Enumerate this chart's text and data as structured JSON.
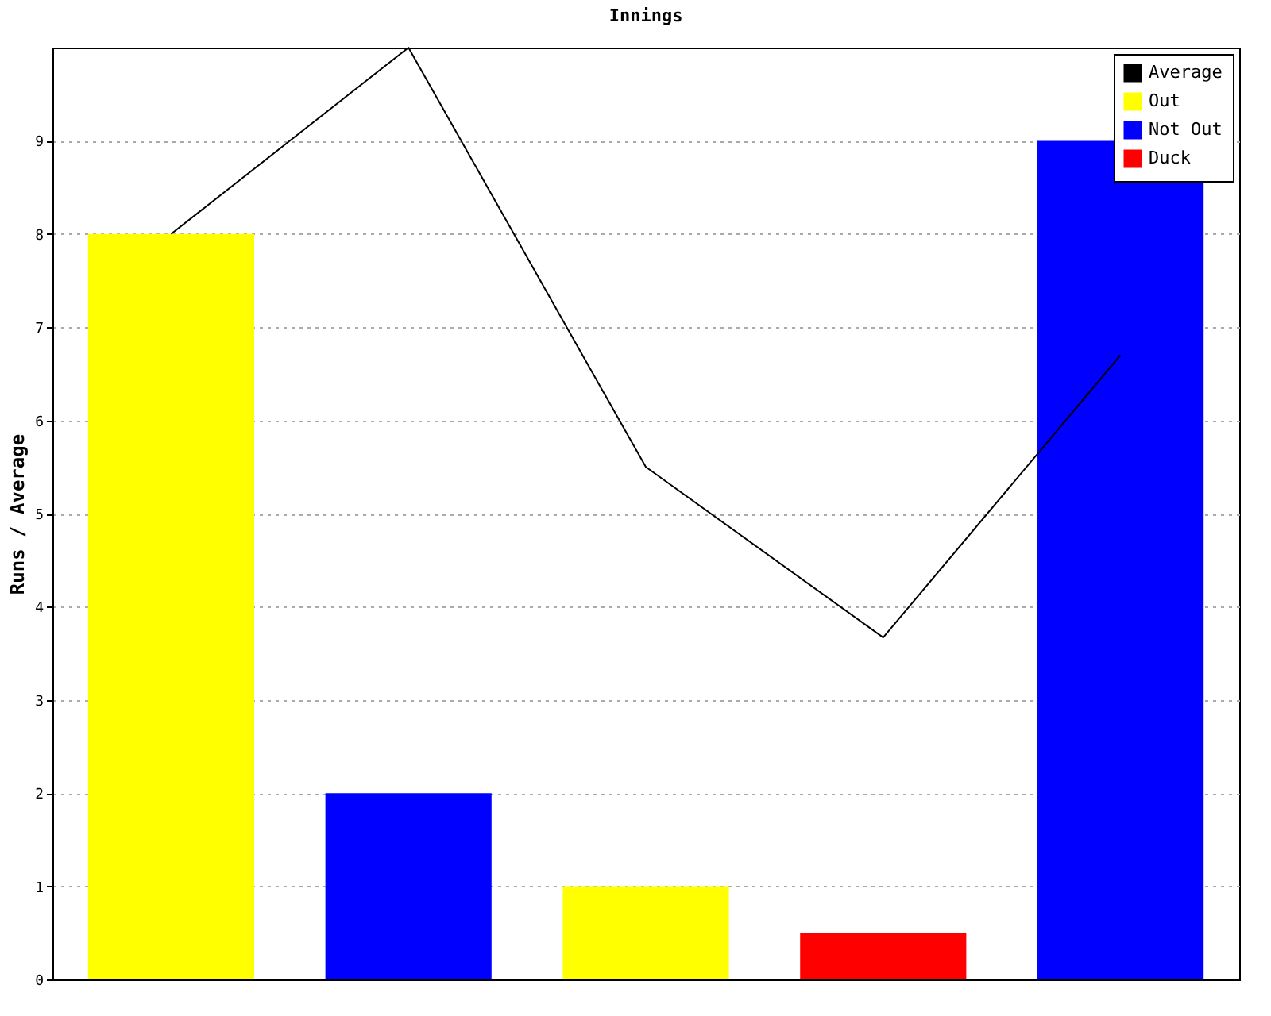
{
  "chart_data": {
    "type": "bar",
    "title": "Innings",
    "ylabel": "Runs / Average",
    "categories": [
      null,
      null,
      null,
      null,
      null
    ],
    "series": [
      {
        "name": "Average",
        "type": "line",
        "color": "#000000",
        "values": [
          8,
          10,
          5.5,
          3.67,
          6.7
        ]
      },
      {
        "name": "Out",
        "color": "#ffff00",
        "values": [
          8,
          null,
          1,
          null,
          null
        ]
      },
      {
        "name": "Not Out",
        "color": "#0000ff",
        "values": [
          null,
          2,
          null,
          null,
          9
        ]
      },
      {
        "name": "Duck",
        "color": "#ff0000",
        "values": [
          null,
          null,
          null,
          0.5,
          null
        ]
      }
    ],
    "ylim": [
      0,
      10
    ],
    "yticks": [
      0,
      1,
      2,
      3,
      4,
      5,
      6,
      7,
      8,
      9
    ],
    "grid": "y",
    "legend": "top right",
    "tick_labels": "y",
    "line_style": "solid",
    "marker": "none"
  }
}
